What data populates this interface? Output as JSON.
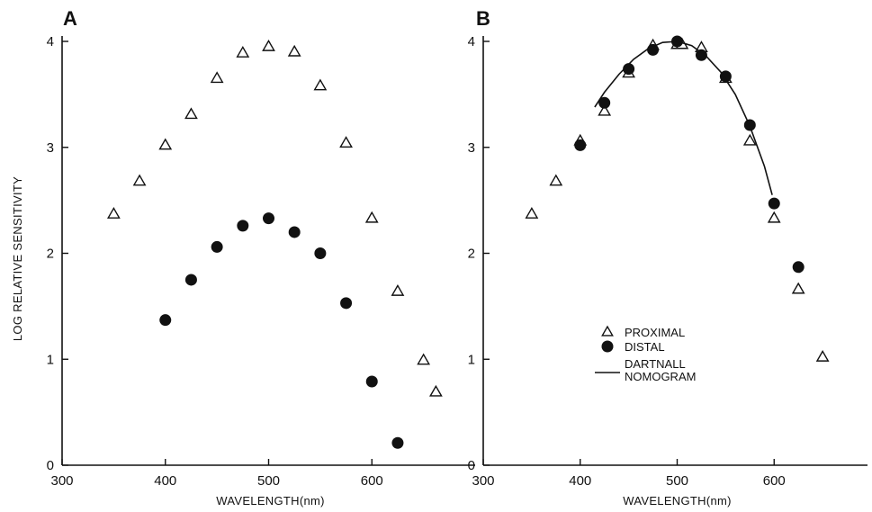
{
  "chart_data": [
    {
      "type": "scatter",
      "panel_label": "A",
      "xlabel": "WAVELENGTH(nm)",
      "ylabel": "LOG RELATIVE SENSITIVITY",
      "xlim": [
        300,
        660
      ],
      "ylim": [
        0,
        4
      ],
      "xticks": [
        300,
        400,
        500,
        600
      ],
      "yticks": [
        0,
        1,
        2,
        3,
        4
      ],
      "series": [
        {
          "name": "PROXIMAL",
          "marker": "triangle-open",
          "x": [
            350,
            375,
            400,
            425,
            450,
            475,
            500,
            525,
            550,
            575,
            600,
            625,
            650,
            662
          ],
          "y": [
            2.37,
            2.68,
            3.02,
            3.31,
            3.65,
            3.89,
            3.95,
            3.9,
            3.58,
            3.04,
            2.33,
            1.64,
            0.99,
            0.69
          ]
        },
        {
          "name": "DISTAL",
          "marker": "circle-filled",
          "x": [
            400,
            425,
            450,
            475,
            500,
            525,
            550,
            575,
            600,
            625
          ],
          "y": [
            1.37,
            1.75,
            2.06,
            2.26,
            2.33,
            2.2,
            2.0,
            1.53,
            0.79,
            0.21
          ]
        }
      ]
    },
    {
      "type": "scatter",
      "panel_label": "B",
      "xlabel": "WAVELENGTH(nm)",
      "xlim": [
        300,
        660
      ],
      "ylim": [
        0,
        4
      ],
      "xticks": [
        300,
        400,
        500,
        600
      ],
      "yticks": [
        0,
        1,
        2,
        3,
        4
      ],
      "legend_position": "center-right",
      "series": [
        {
          "name": "PROXIMAL",
          "marker": "triangle-open",
          "x": [
            350,
            375,
            400,
            425,
            450,
            475,
            500,
            505,
            525,
            550,
            575,
            600,
            625,
            650
          ],
          "y": [
            2.37,
            2.68,
            3.06,
            3.34,
            3.7,
            3.96,
            3.97,
            3.97,
            3.94,
            3.65,
            3.06,
            2.33,
            1.66,
            1.02
          ]
        },
        {
          "name": "DISTAL",
          "marker": "circle-filled",
          "x": [
            400,
            425,
            450,
            475,
            500,
            525,
            550,
            575,
            600,
            625
          ],
          "y": [
            3.02,
            3.42,
            3.74,
            3.92,
            4.0,
            3.87,
            3.67,
            3.21,
            2.47,
            1.87
          ]
        },
        {
          "name": "DARTNALL NOMOGRAM",
          "name_lines": [
            "DARTNALL",
            "NOMOGRAM"
          ],
          "marker": "line",
          "x": [
            415,
            425,
            440,
            455,
            470,
            485,
            500,
            515,
            530,
            545,
            560,
            575,
            590,
            598
          ],
          "y": [
            3.38,
            3.52,
            3.69,
            3.83,
            3.93,
            3.99,
            4.0,
            3.96,
            3.86,
            3.71,
            3.5,
            3.2,
            2.82,
            2.55
          ]
        }
      ]
    }
  ]
}
